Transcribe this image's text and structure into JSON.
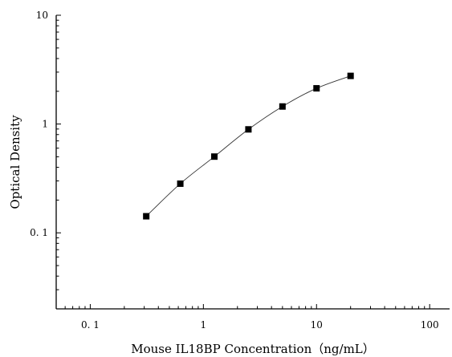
{
  "chart_data": {
    "type": "scatter",
    "title": "",
    "xlabel": "Mouse IL18BP Concentration（ng/mL）",
    "ylabel": "Optical Density",
    "xscale": "log",
    "yscale": "log",
    "xlim": [
      0.05,
      150
    ],
    "ylim": [
      0.02,
      10
    ],
    "x_ticks": [
      0.1,
      1,
      10,
      100
    ],
    "x_tick_labels": [
      "0. 1",
      "1",
      "10",
      "100"
    ],
    "y_ticks": [
      0.1,
      1,
      10
    ],
    "y_tick_labels": [
      "0. 1",
      "1",
      "10"
    ],
    "grid": false,
    "legend": "none",
    "series": [
      {
        "x": [
          0.3125,
          0.625,
          1.25,
          2.5,
          5,
          10,
          20
        ],
        "y": [
          0.142,
          0.283,
          0.502,
          0.893,
          1.45,
          2.13,
          2.77
        ],
        "marker": "square",
        "line": "smooth-fit",
        "color": "#000000"
      }
    ]
  }
}
